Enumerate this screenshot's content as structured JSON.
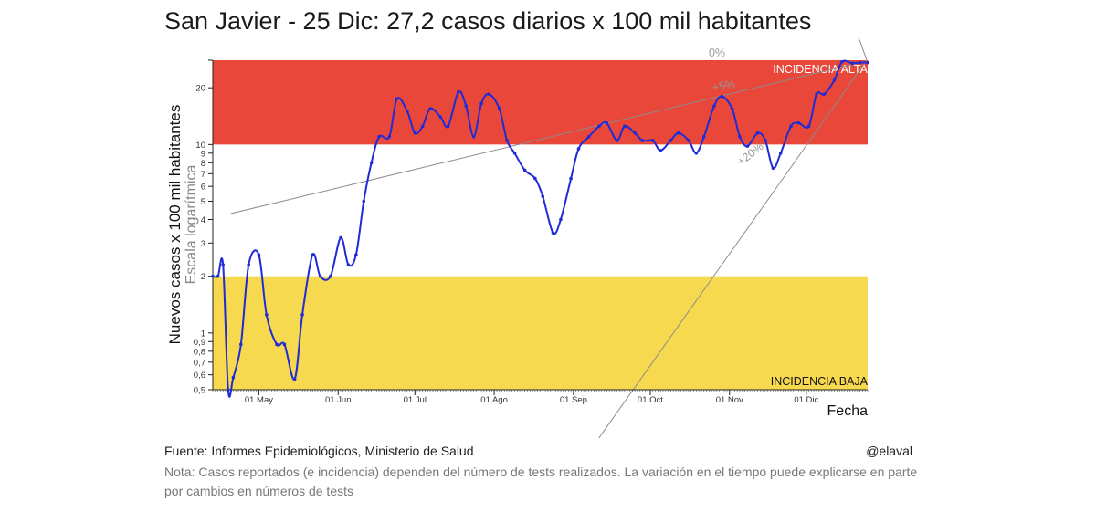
{
  "title": "San Javier - 25 Dic: 27,2 casos diarios x 100 mil habitantes",
  "footer": {
    "source": "Fuente: Informes Epidemiológicos, Ministerio de Salud",
    "author": "@elaval",
    "note": "Nota: Casos reportados (e incidencia) dependen del número de tests realizados. La variación en el tiempo puede explicarse en parte por cambios en números de tests"
  },
  "chart_data": {
    "type": "line",
    "title": "San Javier - 25 Dic: 27,2 casos diarios x 100 mil habitantes",
    "xlabel": "Fecha",
    "ylabel": "Nuevos casos x 100 mil habitantes",
    "ylabel_secondary": "Escala logarítmica",
    "y_scale": "log",
    "xlim": [
      "2020-04-13",
      "2020-12-25"
    ],
    "ylim": [
      0.5,
      28
    ],
    "x_ticks": [
      {
        "date": "2020-05-01",
        "label": "01 May"
      },
      {
        "date": "2020-06-01",
        "label": "01 Jun"
      },
      {
        "date": "2020-07-01",
        "label": "01 Jul"
      },
      {
        "date": "2020-08-01",
        "label": "01 Ago"
      },
      {
        "date": "2020-09-01",
        "label": "01 Sep"
      },
      {
        "date": "2020-10-01",
        "label": "01 Oct"
      },
      {
        "date": "2020-11-01",
        "label": "01 Nov"
      },
      {
        "date": "2020-12-01",
        "label": "01 Dic"
      }
    ],
    "y_ticks": [
      {
        "value": 0.5,
        "label": "0,5"
      },
      {
        "value": 0.6,
        "label": "0,6"
      },
      {
        "value": 0.7,
        "label": "0,7"
      },
      {
        "value": 0.8,
        "label": "0,8"
      },
      {
        "value": 0.9,
        "label": "0,9"
      },
      {
        "value": 1,
        "label": "1"
      },
      {
        "value": 2,
        "label": "2"
      },
      {
        "value": 3,
        "label": "3"
      },
      {
        "value": 4,
        "label": "4"
      },
      {
        "value": 5,
        "label": "5"
      },
      {
        "value": 6,
        "label": "6"
      },
      {
        "value": 7,
        "label": "7"
      },
      {
        "value": 8,
        "label": "8"
      },
      {
        "value": 9,
        "label": "9"
      },
      {
        "value": 10,
        "label": "10"
      },
      {
        "value": 20,
        "label": "20"
      }
    ],
    "bands": [
      {
        "label": "INCIDENCIA ALTA",
        "from": 10,
        "to": 28,
        "color": "#e8473a"
      },
      {
        "label": "INCIDENCIA BAJA",
        "from": 0.5,
        "to": 2,
        "color": "#f6d94f"
      }
    ],
    "growth_lines": [
      {
        "label": "0%",
        "from": [
          "2020-12-20",
          42
        ],
        "to": [
          "2020-12-25",
          27.2
        ]
      },
      {
        "label": "+5%",
        "from": [
          "2020-04-20",
          4.3
        ],
        "to": [
          "2020-12-22",
          27.2
        ]
      },
      {
        "label": "+20%",
        "from": [
          "2020-08-28",
          0.15
        ],
        "to": [
          "2020-12-24",
          27.2
        ]
      }
    ],
    "series": [
      {
        "color": "#1f2bd6",
        "points": [
          [
            "2020-04-13",
            2.0
          ],
          [
            "2020-04-15",
            2.0
          ],
          [
            "2020-04-17",
            2.3
          ],
          [
            "2020-04-19",
            0.5
          ],
          [
            "2020-04-21",
            0.58
          ],
          [
            "2020-04-24",
            0.87
          ],
          [
            "2020-04-27",
            2.3
          ],
          [
            "2020-05-01",
            2.6
          ],
          [
            "2020-05-04",
            1.25
          ],
          [
            "2020-05-08",
            0.87
          ],
          [
            "2020-05-11",
            0.87
          ],
          [
            "2020-05-15",
            0.57
          ],
          [
            "2020-05-18",
            1.25
          ],
          [
            "2020-05-22",
            2.6
          ],
          [
            "2020-05-25",
            2.0
          ],
          [
            "2020-05-29",
            2.0
          ],
          [
            "2020-06-02",
            3.2
          ],
          [
            "2020-06-05",
            2.3
          ],
          [
            "2020-06-08",
            2.6
          ],
          [
            "2020-06-11",
            5.0
          ],
          [
            "2020-06-14",
            8.0
          ],
          [
            "2020-06-17",
            11.0
          ],
          [
            "2020-06-21",
            11.0
          ],
          [
            "2020-06-24",
            17.5
          ],
          [
            "2020-06-28",
            15.0
          ],
          [
            "2020-07-01",
            11.5
          ],
          [
            "2020-07-04",
            12.5
          ],
          [
            "2020-07-07",
            15.5
          ],
          [
            "2020-07-11",
            14.0
          ],
          [
            "2020-07-14",
            12.5
          ],
          [
            "2020-07-18",
            19.0
          ],
          [
            "2020-07-21",
            16.0
          ],
          [
            "2020-07-24",
            11.0
          ],
          [
            "2020-07-27",
            16.5
          ],
          [
            "2020-07-30",
            18.5
          ],
          [
            "2020-08-03",
            15.5
          ],
          [
            "2020-08-06",
            10.5
          ],
          [
            "2020-08-09",
            9.0
          ],
          [
            "2020-08-13",
            7.3
          ],
          [
            "2020-08-17",
            6.6
          ],
          [
            "2020-08-20",
            5.3
          ],
          [
            "2020-08-24",
            3.4
          ],
          [
            "2020-08-27",
            4.0
          ],
          [
            "2020-08-31",
            6.6
          ],
          [
            "2020-09-03",
            9.5
          ],
          [
            "2020-09-07",
            11.0
          ],
          [
            "2020-09-11",
            12.5
          ],
          [
            "2020-09-14",
            13.0
          ],
          [
            "2020-09-18",
            10.5
          ],
          [
            "2020-09-21",
            12.5
          ],
          [
            "2020-09-25",
            11.5
          ],
          [
            "2020-09-28",
            10.5
          ],
          [
            "2020-10-02",
            10.5
          ],
          [
            "2020-10-05",
            9.3
          ],
          [
            "2020-10-09",
            10.5
          ],
          [
            "2020-10-12",
            11.5
          ],
          [
            "2020-10-16",
            10.5
          ],
          [
            "2020-10-19",
            9.0
          ],
          [
            "2020-10-22",
            11.0
          ],
          [
            "2020-10-26",
            16.0
          ],
          [
            "2020-10-29",
            18.0
          ],
          [
            "2020-11-02",
            15.5
          ],
          [
            "2020-11-05",
            11.0
          ],
          [
            "2020-11-08",
            9.8
          ],
          [
            "2020-11-12",
            11.5
          ],
          [
            "2020-11-15",
            10.5
          ],
          [
            "2020-11-18",
            7.5
          ],
          [
            "2020-11-21",
            9.0
          ],
          [
            "2020-11-25",
            12.5
          ],
          [
            "2020-11-28",
            13.0
          ],
          [
            "2020-12-02",
            12.5
          ],
          [
            "2020-12-05",
            18.5
          ],
          [
            "2020-12-08",
            18.5
          ],
          [
            "2020-12-12",
            22.0
          ],
          [
            "2020-12-15",
            27.5
          ],
          [
            "2020-12-19",
            27.0
          ],
          [
            "2020-12-22",
            27.2
          ],
          [
            "2020-12-25",
            27.2
          ]
        ]
      }
    ]
  }
}
